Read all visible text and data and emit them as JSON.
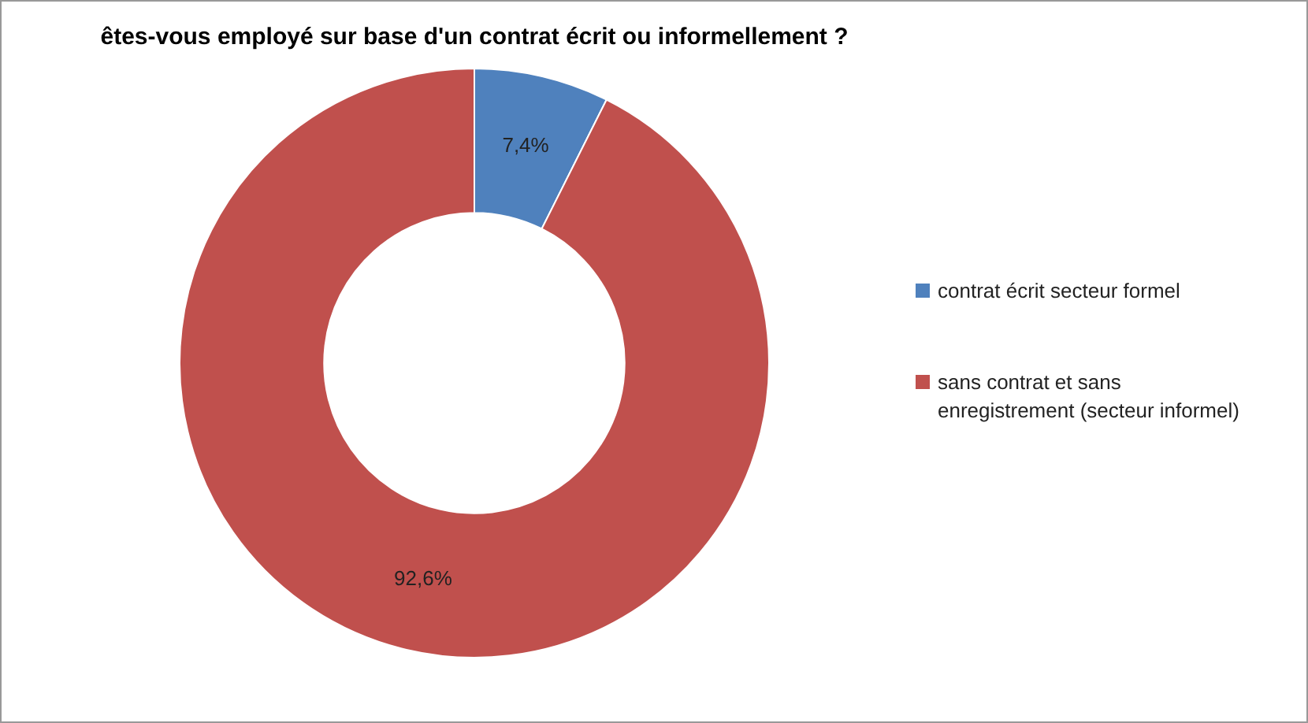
{
  "chart_data": {
    "type": "donut",
    "title": "êtes-vous employé sur base d'un contrat écrit ou informellement ?",
    "categories": [
      "contrat écrit secteur formel",
      "sans contrat et sans enregistrement (secteur informel)"
    ],
    "values": [
      7.4,
      92.6
    ],
    "colors": [
      "#4f81bd",
      "#c0504d"
    ],
    "value_labels": [
      "7,4%",
      "92,6%"
    ],
    "legend": "right"
  }
}
